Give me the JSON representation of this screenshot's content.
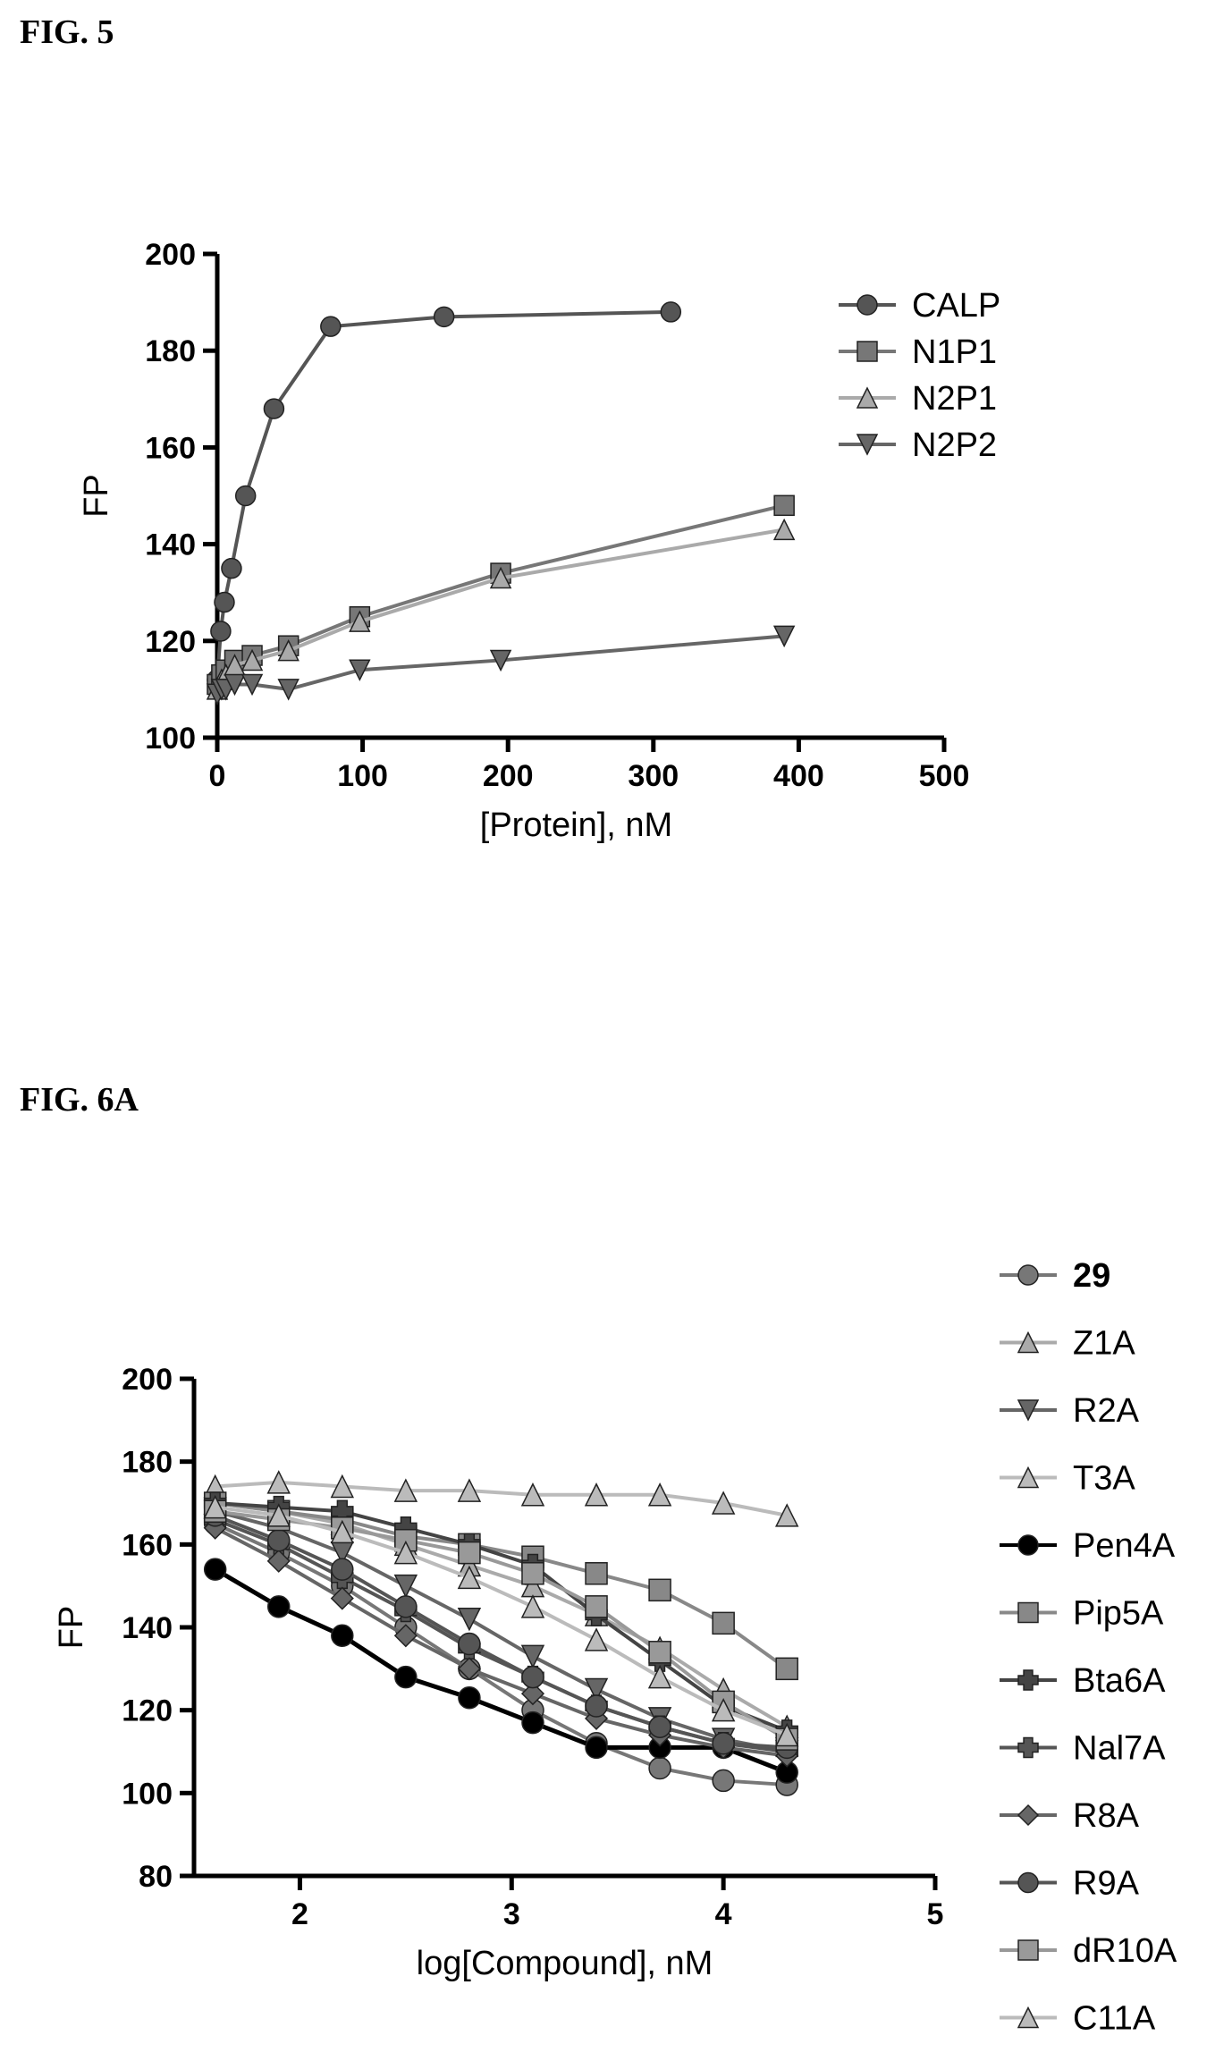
{
  "fig5": {
    "label": "FIG. 5",
    "chart_data": {
      "type": "scatter",
      "xlabel": "[Protein], nM",
      "ylabel": "FP",
      "xlim": [
        0,
        500
      ],
      "ylim": [
        100,
        200
      ],
      "xticks": [
        "0",
        "100",
        "200",
        "300",
        "400",
        "500"
      ],
      "yticks": [
        "100",
        "120",
        "140",
        "160",
        "180",
        "200"
      ],
      "legend_position": "right",
      "series": [
        {
          "name": "CALP",
          "x": [
            0,
            2.4,
            4.9,
            9.8,
            19.5,
            39,
            78,
            156,
            312
          ],
          "y": [
            112,
            122,
            128,
            135,
            150,
            168,
            185,
            187,
            188
          ]
        },
        {
          "name": "N1P1",
          "x": [
            0,
            3,
            6,
            12,
            24,
            49,
            98,
            195,
            390
          ],
          "y": [
            111,
            113,
            114,
            116,
            117,
            119,
            125,
            134,
            148
          ]
        },
        {
          "name": "N2P1",
          "x": [
            0,
            3,
            6,
            12,
            24,
            49,
            98,
            195,
            390
          ],
          "y": [
            110,
            112,
            113,
            115,
            116,
            118,
            124,
            133,
            143
          ]
        },
        {
          "name": "N2P2",
          "x": [
            0,
            3,
            6,
            12,
            24,
            49,
            98,
            195,
            390
          ],
          "y": [
            109,
            110,
            110,
            111,
            111,
            110,
            114,
            116,
            121
          ]
        }
      ]
    }
  },
  "fig6a": {
    "label": "FIG. 6A",
    "chart_data": {
      "type": "scatter",
      "xlabel": "log[Compound], nM",
      "ylabel": "FP",
      "xlim": [
        1.5,
        5
      ],
      "ylim": [
        80,
        200
      ],
      "xticks": [
        "2",
        "3",
        "4",
        "5"
      ],
      "yticks": [
        "80",
        "100",
        "120",
        "140",
        "160",
        "180",
        "200"
      ],
      "legend_position": "right",
      "series": [
        {
          "name": "29",
          "x": [
            1.6,
            1.9,
            2.2,
            2.5,
            2.8,
            3.1,
            3.4,
            3.7,
            4.0,
            4.3
          ],
          "y": [
            165,
            158,
            150,
            140,
            130,
            120,
            112,
            106,
            103,
            102
          ]
        },
        {
          "name": "Z1A",
          "x": [
            1.6,
            1.9,
            2.2,
            2.5,
            2.8,
            3.1,
            3.4,
            3.7,
            4.0,
            4.3
          ],
          "y": [
            170,
            168,
            165,
            160,
            155,
            150,
            143,
            135,
            125,
            116
          ]
        },
        {
          "name": "R2A",
          "x": [
            1.6,
            1.9,
            2.2,
            2.5,
            2.8,
            3.1,
            3.4,
            3.7,
            4.0,
            4.3
          ],
          "y": [
            168,
            164,
            158,
            150,
            142,
            133,
            125,
            118,
            113,
            110
          ]
        },
        {
          "name": "T3A",
          "x": [
            1.6,
            1.9,
            2.2,
            2.5,
            2.8,
            3.1,
            3.4,
            3.7,
            4.0,
            4.3
          ],
          "y": [
            174,
            175,
            174,
            173,
            173,
            172,
            172,
            172,
            170,
            167
          ]
        },
        {
          "name": "Pen4A",
          "x": [
            1.6,
            1.9,
            2.2,
            2.5,
            2.8,
            3.1,
            3.4,
            3.7,
            4.0,
            4.3
          ],
          "y": [
            154,
            145,
            138,
            128,
            123,
            117,
            111,
            111,
            111,
            105
          ]
        },
        {
          "name": "Pip5A",
          "x": [
            1.6,
            1.9,
            2.2,
            2.5,
            2.8,
            3.1,
            3.4,
            3.7,
            4.0,
            4.3
          ],
          "y": [
            170,
            168,
            166,
            162,
            160,
            157,
            153,
            149,
            141,
            130
          ]
        },
        {
          "name": "Bta6A",
          "x": [
            1.6,
            1.9,
            2.2,
            2.5,
            2.8,
            3.1,
            3.4,
            3.7,
            4.0,
            4.3
          ],
          "y": [
            170,
            169,
            168,
            164,
            160,
            155,
            143,
            132,
            121,
            115
          ]
        },
        {
          "name": "Nal7A",
          "x": [
            1.6,
            1.9,
            2.2,
            2.5,
            2.8,
            3.1,
            3.4,
            3.7,
            4.0,
            4.3
          ],
          "y": [
            166,
            160,
            152,
            144,
            135,
            128,
            121,
            116,
            112,
            110
          ]
        },
        {
          "name": "R8A",
          "x": [
            1.6,
            1.9,
            2.2,
            2.5,
            2.8,
            3.1,
            3.4,
            3.7,
            4.0,
            4.3
          ],
          "y": [
            164,
            156,
            147,
            138,
            130,
            124,
            118,
            114,
            111,
            109
          ]
        },
        {
          "name": "R9A",
          "x": [
            1.6,
            1.9,
            2.2,
            2.5,
            2.8,
            3.1,
            3.4,
            3.7,
            4.0,
            4.3
          ],
          "y": [
            167,
            161,
            154,
            145,
            136,
            128,
            121,
            116,
            112,
            111
          ]
        },
        {
          "name": "dR10A",
          "x": [
            1.6,
            1.9,
            2.2,
            2.5,
            2.8,
            3.1,
            3.4,
            3.7,
            4.0,
            4.3
          ],
          "y": [
            168,
            166,
            164,
            161,
            158,
            153,
            145,
            134,
            122,
            113
          ]
        },
        {
          "name": "C11A",
          "x": [
            1.6,
            1.9,
            2.2,
            2.5,
            2.8,
            3.1,
            3.4,
            3.7,
            4.0,
            4.3
          ],
          "y": [
            169,
            167,
            163,
            158,
            152,
            145,
            137,
            128,
            120,
            114
          ]
        }
      ]
    }
  },
  "styles": {
    "CALP": {
      "color": "#555555",
      "marker": "circle"
    },
    "N1P1": {
      "color": "#777777",
      "marker": "square"
    },
    "N2P1": {
      "color": "#aaaaaa",
      "marker": "triangle-up"
    },
    "N2P2": {
      "color": "#666666",
      "marker": "triangle-down"
    },
    "29": {
      "color": "#777777",
      "marker": "circle"
    },
    "Z1A": {
      "color": "#aaaaaa",
      "marker": "triangle-up"
    },
    "R2A": {
      "color": "#666666",
      "marker": "triangle-down"
    },
    "T3A": {
      "color": "#bbbbbb",
      "marker": "triangle-up"
    },
    "Pen4A": {
      "color": "#000000",
      "marker": "circle"
    },
    "Pip5A": {
      "color": "#888888",
      "marker": "square"
    },
    "Bta6A": {
      "color": "#444444",
      "marker": "cross"
    },
    "Nal7A": {
      "color": "#555555",
      "marker": "cross"
    },
    "R8A": {
      "color": "#666666",
      "marker": "diamond"
    },
    "R9A": {
      "color": "#555555",
      "marker": "circle"
    },
    "dR10A": {
      "color": "#999999",
      "marker": "square"
    },
    "C11A": {
      "color": "#bbbbbb",
      "marker": "triangle-up"
    }
  }
}
